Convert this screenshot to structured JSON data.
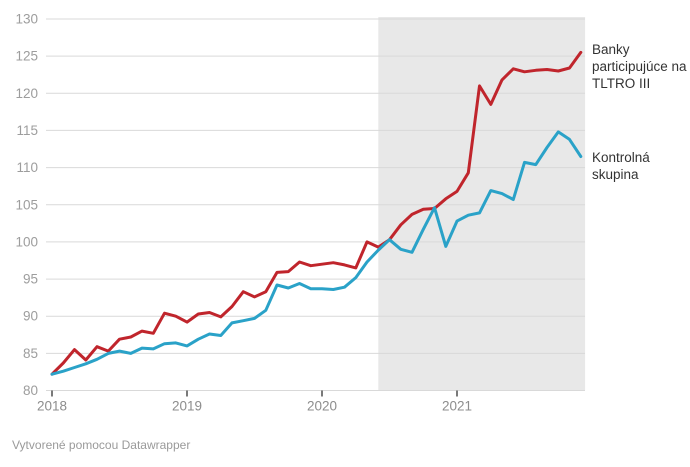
{
  "chart_data": {
    "type": "line",
    "title": "",
    "xlabel": "",
    "ylabel": "",
    "grid": "horizontal",
    "legend_position": "right-annotations",
    "ylim": [
      80,
      130
    ],
    "y_ticks": [
      80,
      85,
      90,
      95,
      100,
      105,
      110,
      115,
      120,
      125,
      130
    ],
    "x_ticks": [
      "2018",
      "2019",
      "2020",
      "2021"
    ],
    "x": [
      "2018-01",
      "2018-02",
      "2018-03",
      "2018-04",
      "2018-05",
      "2018-06",
      "2018-07",
      "2018-08",
      "2018-09",
      "2018-10",
      "2018-11",
      "2018-12",
      "2019-01",
      "2019-02",
      "2019-03",
      "2019-04",
      "2019-05",
      "2019-06",
      "2019-07",
      "2019-08",
      "2019-09",
      "2019-10",
      "2019-11",
      "2019-12",
      "2020-01",
      "2020-02",
      "2020-03",
      "2020-04",
      "2020-05",
      "2020-06",
      "2020-07",
      "2020-08",
      "2020-09",
      "2020-10",
      "2020-11",
      "2020-12",
      "2021-01",
      "2021-02",
      "2021-03",
      "2021-04",
      "2021-05",
      "2021-06",
      "2021-07",
      "2021-08",
      "2021-09",
      "2021-10",
      "2021-11",
      "2021-12"
    ],
    "series": [
      {
        "name": "Banky participujúce na TLTRO III",
        "color": "#c0252c",
        "values": [
          82.2,
          83.7,
          85.5,
          84.1,
          85.9,
          85.3,
          86.9,
          87.2,
          88.0,
          87.7,
          90.4,
          90.0,
          89.2,
          90.3,
          90.5,
          89.9,
          91.3,
          93.3,
          92.6,
          93.3,
          95.9,
          96.0,
          97.3,
          96.8,
          97.0,
          97.2,
          96.9,
          96.5,
          100.0,
          99.3,
          100.3,
          102.3,
          103.7,
          104.4,
          104.5,
          105.8,
          106.8,
          109.3,
          121.0,
          118.5,
          121.8,
          123.3,
          122.9,
          123.1,
          123.2,
          123.0,
          123.4,
          125.5
        ]
      },
      {
        "name": "Kontrolná skupina",
        "color": "#2aa2c8",
        "values": [
          82.2,
          82.6,
          83.1,
          83.6,
          84.2,
          85.0,
          85.3,
          85.0,
          85.7,
          85.6,
          86.3,
          86.4,
          86.0,
          86.9,
          87.6,
          87.4,
          89.1,
          89.4,
          89.7,
          90.8,
          94.2,
          93.8,
          94.4,
          93.7,
          93.7,
          93.6,
          93.9,
          95.2,
          97.3,
          98.9,
          100.3,
          99.0,
          98.6,
          101.7,
          104.6,
          99.4,
          102.8,
          103.6,
          103.9,
          106.9,
          106.5,
          105.7,
          110.7,
          110.4,
          112.7,
          114.8,
          113.8,
          111.5
        ]
      }
    ],
    "shaded_region": {
      "from": "2020-06",
      "to": "2021-12",
      "color": "#e8e8e8"
    }
  },
  "footer": {
    "credit": "Vytvorené pomocou Datawrapper"
  },
  "colors": {
    "series_tltro": "#c0252c",
    "series_control": "#2aa2c8",
    "gridline": "#d9d9d9",
    "band": "#e8e8e8",
    "tick_label": "#9d9d9d",
    "annotation_text": "#333333"
  }
}
